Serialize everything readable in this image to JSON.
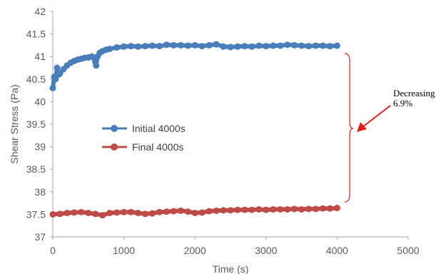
{
  "chart_data": {
    "type": "scatter",
    "title": "",
    "xlabel": "Time (s)",
    "ylabel": "Shear Stress (Pa)",
    "xlim": [
      0,
      5000
    ],
    "ylim": [
      37,
      42
    ],
    "xticks": [
      0,
      1000,
      2000,
      3000,
      4000,
      5000
    ],
    "yticks": [
      37,
      37.5,
      38,
      38.5,
      39,
      39.5,
      40,
      40.5,
      41,
      41.5,
      42
    ],
    "ytick_labels": [
      "37",
      "37.5",
      "38",
      "38.5",
      "39",
      "39.5",
      "40",
      "40.5",
      "41",
      "41.5",
      "42"
    ],
    "grid": false,
    "legend_position": "center-left",
    "series": [
      {
        "name": "Initial 4000s",
        "color": "#4a7ebb",
        "x": [
          0,
          20,
          40,
          60,
          80,
          100,
          150,
          200,
          250,
          300,
          350,
          400,
          450,
          500,
          550,
          600,
          610,
          630,
          660,
          700,
          750,
          800,
          900,
          1000,
          1100,
          1200,
          1300,
          1400,
          1500,
          1600,
          1700,
          1800,
          1900,
          2000,
          2100,
          2200,
          2300,
          2400,
          2500,
          2600,
          2700,
          2800,
          2900,
          3000,
          3100,
          3200,
          3300,
          3400,
          3500,
          3600,
          3700,
          3800,
          3900,
          4000
        ],
        "y": [
          40.3,
          40.55,
          40.5,
          40.75,
          40.6,
          40.62,
          40.72,
          40.8,
          40.86,
          40.9,
          40.93,
          40.95,
          40.97,
          40.98,
          41.0,
          40.88,
          40.8,
          41.0,
          41.08,
          41.12,
          41.15,
          41.17,
          41.2,
          41.22,
          41.23,
          41.22,
          41.23,
          41.24,
          41.23,
          41.26,
          41.25,
          41.25,
          41.24,
          41.25,
          41.23,
          41.25,
          41.27,
          41.22,
          41.21,
          41.22,
          41.23,
          41.22,
          41.24,
          41.23,
          41.24,
          41.24,
          41.26,
          41.25,
          41.24,
          41.23,
          41.24,
          41.24,
          41.23,
          41.24
        ]
      },
      {
        "name": "Final 4000s",
        "color": "#be4b48",
        "x": [
          0,
          100,
          200,
          300,
          400,
          500,
          600,
          700,
          800,
          900,
          1000,
          1100,
          1200,
          1300,
          1400,
          1500,
          1600,
          1700,
          1800,
          1900,
          2000,
          2100,
          2200,
          2300,
          2400,
          2500,
          2600,
          2700,
          2800,
          2900,
          3000,
          3100,
          3200,
          3300,
          3400,
          3500,
          3600,
          3700,
          3800,
          3900,
          4000
        ],
        "y": [
          37.5,
          37.51,
          37.53,
          37.54,
          37.55,
          37.53,
          37.51,
          37.48,
          37.53,
          37.54,
          37.55,
          37.55,
          37.53,
          37.51,
          37.52,
          37.55,
          37.56,
          37.57,
          37.58,
          37.56,
          37.53,
          37.54,
          37.57,
          37.58,
          37.59,
          37.59,
          37.6,
          37.6,
          37.6,
          37.61,
          37.6,
          37.61,
          37.61,
          37.61,
          37.62,
          37.61,
          37.62,
          37.62,
          37.63,
          37.63,
          37.64
        ]
      }
    ],
    "annotation": {
      "lines": [
        "Decreasing",
        "6.9%"
      ],
      "color": "#e31c1c"
    }
  }
}
